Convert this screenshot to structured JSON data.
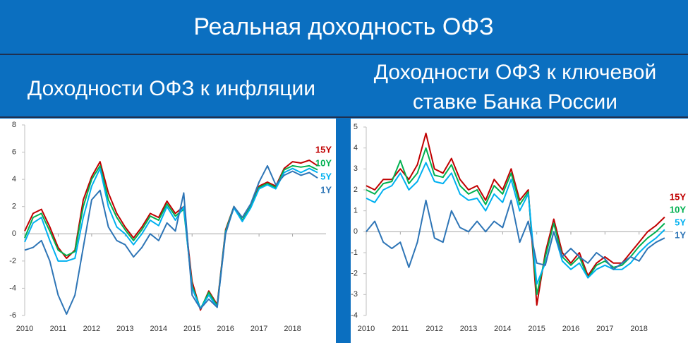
{
  "title": "Реальная доходность ОФЗ",
  "chart_data": [
    {
      "type": "line",
      "title_lines": [
        "Доходности ОФЗ к инфляции"
      ],
      "x": [
        2010,
        2010.25,
        2010.5,
        2010.75,
        2011,
        2011.25,
        2011.5,
        2011.75,
        2012,
        2012.25,
        2012.5,
        2012.75,
        2013,
        2013.25,
        2013.5,
        2013.75,
        2014,
        2014.25,
        2014.5,
        2014.75,
        2015,
        2015.25,
        2015.5,
        2015.75,
        2016,
        2016.25,
        2016.5,
        2016.75,
        2017,
        2017.25,
        2017.5,
        2017.75,
        2018,
        2018.25,
        2018.5,
        2018.75
      ],
      "xlim": [
        2010,
        2019
      ],
      "xticks": [
        2010,
        2011,
        2012,
        2013,
        2014,
        2015,
        2016,
        2017,
        2018
      ],
      "ylim": [
        -6,
        8
      ],
      "yticks": [
        -6,
        -4,
        -2,
        0,
        2,
        4,
        6,
        8
      ],
      "series": [
        {
          "name": "15Y",
          "color": "#c00000",
          "values": [
            0.2,
            1.5,
            1.8,
            0.5,
            -1.0,
            -1.8,
            -1.2,
            2.5,
            4.2,
            5.3,
            3.0,
            1.5,
            0.5,
            -0.3,
            0.5,
            1.5,
            1.2,
            2.4,
            1.5,
            2.0,
            -3.5,
            -5.6,
            -4.2,
            -5.2,
            0.3,
            2.0,
            1.0,
            2.0,
            3.5,
            3.8,
            3.5,
            4.8,
            5.3,
            5.2,
            5.4,
            5.0
          ]
        },
        {
          "name": "10Y",
          "color": "#00b050",
          "values": [
            -0.3,
            1.2,
            1.5,
            0.2,
            -1.2,
            -1.6,
            -1.3,
            2.0,
            4.0,
            5.0,
            2.5,
            1.2,
            0.3,
            -0.5,
            0.3,
            1.3,
            1.0,
            2.2,
            1.3,
            1.8,
            -3.8,
            -5.5,
            -4.3,
            -5.3,
            0.2,
            2.0,
            1.0,
            2.0,
            3.4,
            3.7,
            3.4,
            4.7,
            5.0,
            4.9,
            5.0,
            4.7
          ]
        },
        {
          "name": "5Y",
          "color": "#00b0f0",
          "values": [
            -0.6,
            0.8,
            1.2,
            -0.5,
            -2.0,
            -2.0,
            -1.8,
            1.2,
            3.5,
            4.8,
            2.0,
            0.5,
            0.0,
            -0.8,
            0.0,
            1.0,
            0.6,
            2.0,
            1.0,
            2.0,
            -4.0,
            -5.5,
            -4.5,
            -5.4,
            0.1,
            1.9,
            0.9,
            1.9,
            3.3,
            3.6,
            3.3,
            4.5,
            4.8,
            4.5,
            4.8,
            4.5
          ]
        },
        {
          "name": "1Y",
          "color": "#2e75b6",
          "values": [
            -1.2,
            -1.0,
            -0.5,
            -2.0,
            -4.5,
            -5.9,
            -4.5,
            -1.0,
            2.5,
            3.2,
            0.5,
            -0.5,
            -0.8,
            -1.7,
            -1.0,
            0.0,
            -0.5,
            0.8,
            0.2,
            3.0,
            -4.5,
            -5.5,
            -4.8,
            -5.4,
            0.0,
            2.0,
            1.2,
            2.2,
            3.8,
            5.0,
            3.6,
            4.3,
            4.6,
            4.3,
            4.5,
            4.1
          ]
        }
      ]
    },
    {
      "type": "line",
      "title_lines": [
        "Доходности ОФЗ к ключевой",
        "ставке Банка России"
      ],
      "x": [
        2010,
        2010.25,
        2010.5,
        2010.75,
        2011,
        2011.25,
        2011.5,
        2011.75,
        2012,
        2012.25,
        2012.5,
        2012.75,
        2013,
        2013.25,
        2013.5,
        2013.75,
        2014,
        2014.25,
        2014.5,
        2014.75,
        2015,
        2015.25,
        2015.5,
        2015.75,
        2016,
        2016.25,
        2016.5,
        2016.75,
        2017,
        2017.25,
        2017.5,
        2017.75,
        2018,
        2018.25,
        2018.5,
        2018.75
      ],
      "xlim": [
        2010,
        2019
      ],
      "xticks": [
        2010,
        2011,
        2012,
        2013,
        2014,
        2015,
        2016,
        2017,
        2018
      ],
      "ylim": [
        -4,
        5
      ],
      "yticks": [
        -4,
        -3,
        -2,
        -1,
        0,
        1,
        2,
        3,
        4,
        5
      ],
      "series": [
        {
          "name": "15Y",
          "color": "#c00000",
          "values": [
            2.2,
            2.0,
            2.5,
            2.5,
            3.0,
            2.5,
            3.2,
            4.7,
            3.0,
            2.8,
            3.5,
            2.5,
            2.0,
            2.2,
            1.5,
            2.5,
            2.0,
            3.0,
            1.5,
            2.0,
            -3.5,
            -1.0,
            0.6,
            -1.0,
            -1.5,
            -1.0,
            -2.1,
            -1.5,
            -1.2,
            -1.5,
            -1.5,
            -1.0,
            -0.5,
            0.0,
            0.3,
            0.7
          ]
        },
        {
          "name": "10Y",
          "color": "#00b050",
          "values": [
            2.0,
            1.8,
            2.3,
            2.4,
            3.4,
            2.3,
            2.8,
            4.0,
            2.7,
            2.6,
            3.2,
            2.2,
            1.8,
            2.0,
            1.3,
            2.2,
            1.8,
            2.8,
            1.3,
            1.9,
            -3.0,
            -1.2,
            0.4,
            -1.2,
            -1.6,
            -1.2,
            -2.2,
            -1.6,
            -1.4,
            -1.7,
            -1.6,
            -1.2,
            -0.7,
            -0.3,
            0.0,
            0.4
          ]
        },
        {
          "name": "5Y",
          "color": "#00b0f0",
          "values": [
            1.6,
            1.4,
            2.0,
            2.2,
            2.8,
            2.0,
            2.4,
            3.3,
            2.4,
            2.3,
            2.8,
            1.8,
            1.5,
            1.6,
            1.0,
            1.8,
            1.4,
            2.5,
            1.0,
            1.8,
            -2.5,
            -1.5,
            0.0,
            -1.4,
            -1.8,
            -1.5,
            -2.2,
            -1.8,
            -1.6,
            -1.8,
            -1.8,
            -1.5,
            -1.0,
            -0.6,
            -0.3,
            0.1
          ]
        },
        {
          "name": "1Y",
          "color": "#2e75b6",
          "values": [
            0.0,
            0.5,
            -0.5,
            -0.8,
            -0.5,
            -1.7,
            -0.5,
            1.5,
            -0.3,
            -0.5,
            1.0,
            0.2,
            0.0,
            0.5,
            0.0,
            0.5,
            0.2,
            1.5,
            -0.5,
            0.5,
            -1.5,
            -1.6,
            0.0,
            -1.2,
            -0.8,
            -1.2,
            -1.5,
            -1.0,
            -1.3,
            -1.8,
            -1.5,
            -1.2,
            -1.4,
            -0.8,
            -0.5,
            -0.3
          ]
        }
      ]
    }
  ]
}
